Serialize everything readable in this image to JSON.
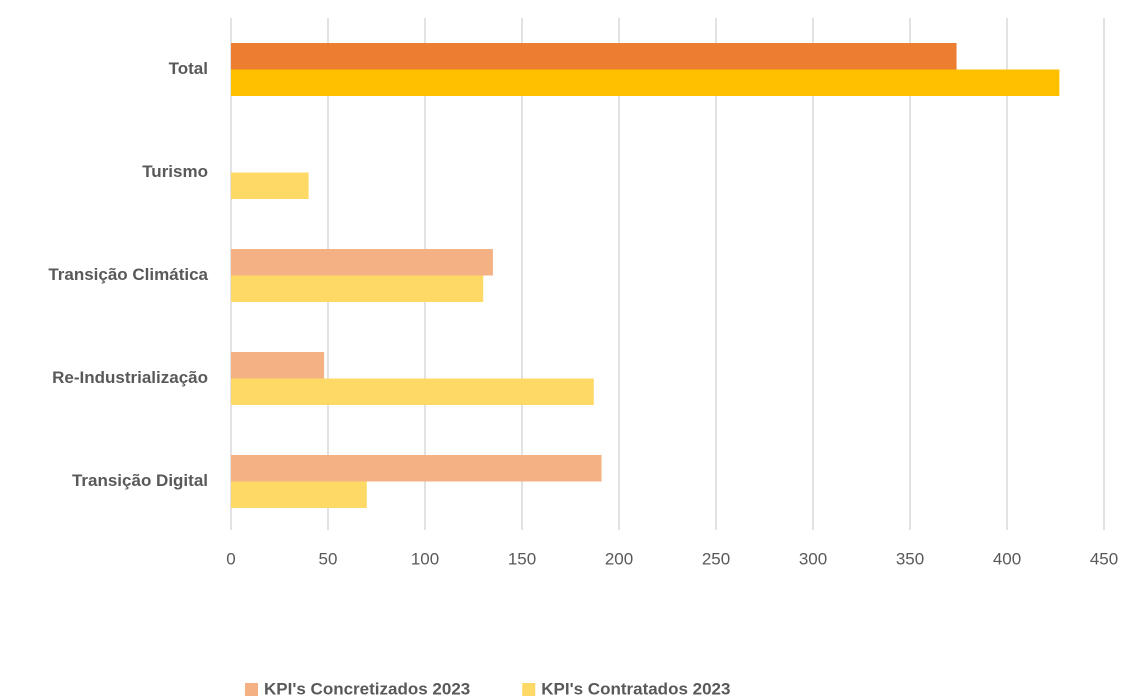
{
  "chart_data": {
    "type": "barh",
    "categories": [
      "Total",
      "Turismo",
      "Transição Climática",
      "Re-Industrialização",
      "Transição Digital"
    ],
    "series": [
      {
        "name": "KPI's Concretizados 2023",
        "color": "#f4b183",
        "point_colors": [
          "#ed7d31",
          "#f4b183",
          "#f4b183",
          "#f4b183",
          "#f4b183"
        ],
        "values": [
          374,
          null,
          135,
          48,
          191
        ]
      },
      {
        "name": "KPI's Contratados 2023",
        "color": "#ffd966",
        "point_colors": [
          "#ffc000",
          "#ffd966",
          "#ffd966",
          "#ffd966",
          "#ffd966"
        ],
        "values": [
          427,
          40,
          130,
          187,
          70
        ]
      }
    ],
    "xlim": [
      0,
      450
    ],
    "xticks": [
      0,
      50,
      100,
      150,
      200,
      250,
      300,
      350,
      400,
      450
    ],
    "grid": true,
    "legend": "bottom"
  }
}
